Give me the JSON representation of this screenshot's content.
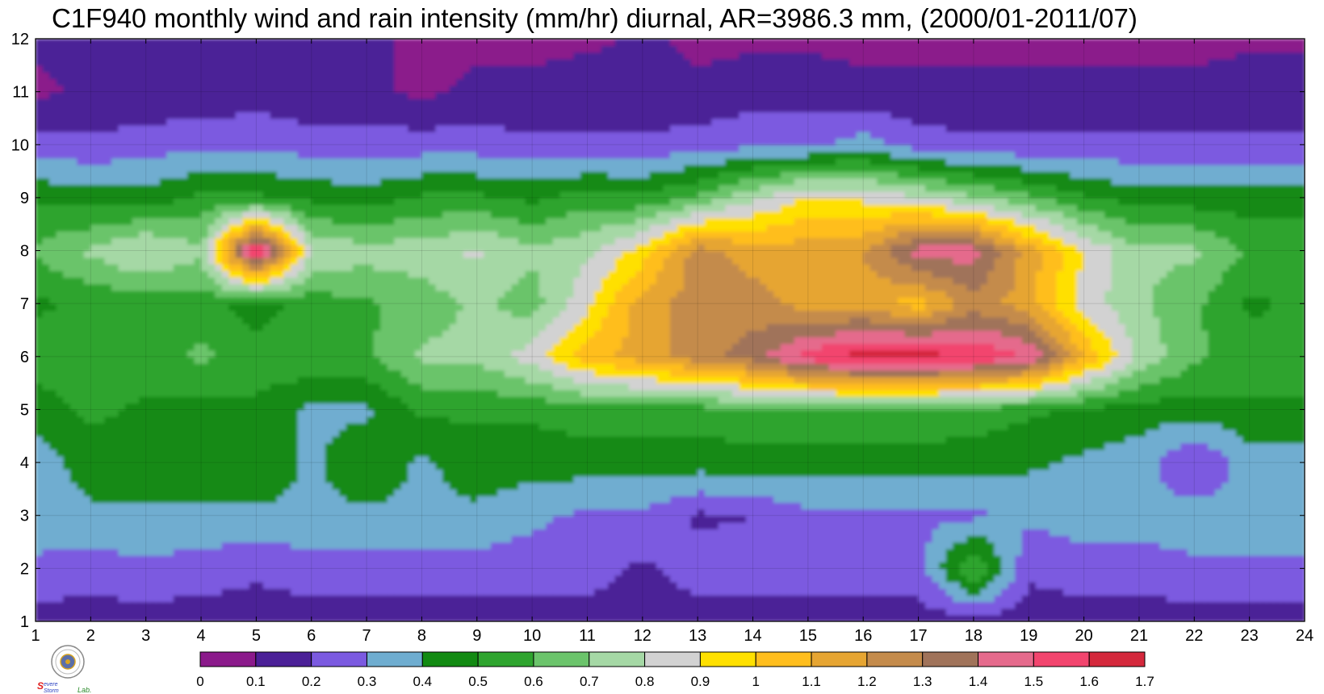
{
  "chart_data": {
    "type": "heatmap",
    "subtype": "filled-contour",
    "title": "C1F940 monthly wind and rain intensity (mm/hr) diurnal, AR=3986.3 mm, (2000/01-2011/07)",
    "x_ticks": [
      "1",
      "2",
      "3",
      "4",
      "5",
      "6",
      "7",
      "8",
      "9",
      "10",
      "11",
      "12",
      "13",
      "14",
      "15",
      "16",
      "17",
      "18",
      "19",
      "20",
      "21",
      "22",
      "23",
      "24"
    ],
    "y_ticks": [
      "1",
      "2",
      "3",
      "4",
      "5",
      "6",
      "7",
      "8",
      "9",
      "10",
      "11",
      "12"
    ],
    "xlim": [
      1,
      24
    ],
    "ylim": [
      1,
      12
    ],
    "x": [
      1,
      2,
      3,
      4,
      5,
      6,
      7,
      8,
      9,
      10,
      11,
      12,
      13,
      14,
      15,
      16,
      17,
      18,
      19,
      20,
      21,
      22,
      23,
      24
    ],
    "y": [
      1,
      2,
      3,
      4,
      5,
      6,
      7,
      8,
      9,
      10,
      11,
      12
    ],
    "z": [
      [
        0.15,
        0.15,
        0.15,
        0.15,
        0.15,
        0.15,
        0.15,
        0.15,
        0.15,
        0.15,
        0.15,
        0.15,
        0.15,
        0.15,
        0.15,
        0.15,
        0.15,
        0.15,
        0.15,
        0.15,
        0.15,
        0.15,
        0.15,
        0.15
      ],
      [
        0.28,
        0.25,
        0.28,
        0.25,
        0.22,
        0.25,
        0.25,
        0.25,
        0.25,
        0.25,
        0.25,
        0.18,
        0.25,
        0.25,
        0.25,
        0.25,
        0.25,
        0.62,
        0.22,
        0.25,
        0.25,
        0.28,
        0.28,
        0.28
      ],
      [
        0.35,
        0.38,
        0.38,
        0.38,
        0.38,
        0.38,
        0.38,
        0.38,
        0.38,
        0.32,
        0.28,
        0.28,
        0.18,
        0.2,
        0.28,
        0.28,
        0.28,
        0.28,
        0.32,
        0.35,
        0.35,
        0.35,
        0.35,
        0.35
      ],
      [
        0.35,
        0.45,
        0.48,
        0.45,
        0.48,
        0.38,
        0.48,
        0.38,
        0.45,
        0.45,
        0.45,
        0.45,
        0.45,
        0.45,
        0.45,
        0.45,
        0.45,
        0.45,
        0.42,
        0.38,
        0.35,
        0.18,
        0.35,
        0.35
      ],
      [
        0.45,
        0.52,
        0.48,
        0.45,
        0.48,
        0.38,
        0.38,
        0.52,
        0.52,
        0.52,
        0.55,
        0.55,
        0.55,
        0.58,
        0.58,
        0.58,
        0.58,
        0.55,
        0.52,
        0.48,
        0.45,
        0.45,
        0.48,
        0.48
      ],
      [
        0.55,
        0.58,
        0.55,
        0.62,
        0.55,
        0.58,
        0.58,
        0.72,
        0.72,
        0.85,
        1.05,
        1.15,
        1.25,
        1.35,
        1.55,
        1.65,
        1.65,
        1.6,
        1.5,
        1.1,
        0.78,
        0.62,
        0.55,
        0.55
      ],
      [
        0.48,
        0.52,
        0.55,
        0.55,
        0.45,
        0.55,
        0.58,
        0.65,
        0.72,
        0.65,
        0.88,
        1.15,
        1.25,
        1.25,
        1.15,
        1.15,
        1.05,
        1.25,
        1.15,
        0.85,
        0.72,
        0.62,
        0.48,
        0.52
      ],
      [
        0.62,
        0.72,
        0.82,
        0.72,
        1.65,
        0.78,
        0.75,
        0.75,
        0.82,
        0.72,
        0.78,
        0.95,
        1.25,
        1.15,
        1.15,
        1.2,
        1.45,
        1.45,
        1.15,
        0.9,
        0.72,
        0.72,
        0.58,
        0.58
      ],
      [
        0.48,
        0.45,
        0.45,
        0.52,
        0.52,
        0.48,
        0.45,
        0.52,
        0.52,
        0.48,
        0.55,
        0.52,
        0.62,
        0.78,
        0.92,
        0.88,
        0.82,
        0.72,
        0.62,
        0.52,
        0.45,
        0.45,
        0.45,
        0.45
      ],
      [
        0.25,
        0.22,
        0.25,
        0.28,
        0.28,
        0.25,
        0.25,
        0.25,
        0.25,
        0.22,
        0.22,
        0.22,
        0.25,
        0.28,
        0.28,
        0.35,
        0.25,
        0.22,
        0.22,
        0.22,
        0.22,
        0.22,
        0.22,
        0.22
      ],
      [
        0.08,
        0.12,
        0.12,
        0.12,
        0.15,
        0.12,
        0.12,
        0.08,
        0.12,
        0.12,
        0.15,
        0.12,
        0.12,
        0.15,
        0.15,
        0.12,
        0.12,
        0.12,
        0.12,
        0.12,
        0.12,
        0.12,
        0.15,
        0.15
      ],
      [
        0.12,
        0.12,
        0.12,
        0.12,
        0.12,
        0.12,
        0.12,
        0.08,
        0.08,
        0.08,
        0.08,
        0.12,
        0.08,
        0.08,
        0.08,
        0.08,
        0.08,
        0.08,
        0.08,
        0.08,
        0.08,
        0.08,
        0.08,
        0.08
      ]
    ],
    "colorbar": {
      "levels": [
        0,
        0.1,
        0.2,
        0.3,
        0.4,
        0.5,
        0.6,
        0.7,
        0.8,
        0.9,
        1,
        1.1,
        1.2,
        1.3,
        1.4,
        1.5,
        1.6,
        1.7
      ],
      "tick_labels": [
        "0",
        "0.1",
        "0.2",
        "0.3",
        "0.4",
        "0.5",
        "0.6",
        "0.7",
        "0.8",
        "0.9",
        "1",
        "1.1",
        "1.2",
        "1.3",
        "1.4",
        "1.5",
        "1.6",
        "1.7"
      ],
      "colors": [
        "#8b1a8b",
        "#4b2097",
        "#7b5ae0",
        "#6fadd0",
        "#128a12",
        "#2ea42e",
        "#6bc46b",
        "#a5d8a5",
        "#d2d2d2",
        "#ffe000",
        "#ffbe1e",
        "#e6a532",
        "#c48b4b",
        "#a0735a",
        "#e56a8c",
        "#f2456e",
        "#d4283c"
      ],
      "position": "bottom"
    },
    "contour_line_color": "#f0a818",
    "grid": true,
    "logo_text": "SEVERE STORM Lab."
  }
}
